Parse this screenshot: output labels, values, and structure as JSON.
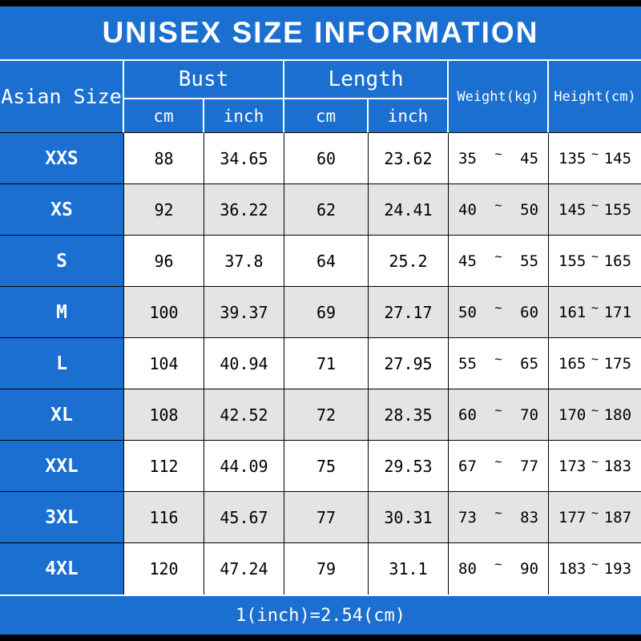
{
  "title": "UNISEX SIZE INFORMATION",
  "footer_note": "1(inch)=2.54(cm)",
  "colors": {
    "blue": "#1a6fd1",
    "gray_row": "#e4e4e4",
    "ink": "#000000",
    "paper": "#ffffff"
  },
  "table": {
    "size_col_header": "Asian Size",
    "tilde": "~",
    "groups": [
      {
        "label": "Bust",
        "sub": [
          "cm",
          "inch"
        ]
      },
      {
        "label": "Length",
        "sub": [
          "cm",
          "inch"
        ]
      },
      {
        "label": "Weight(kg)"
      },
      {
        "label": "Height(cm)"
      }
    ],
    "rows": [
      {
        "size": "XXS",
        "bust_cm": "88",
        "bust_inch": "34.65",
        "length_cm": "60",
        "length_inch": "23.62",
        "weight_min": "35",
        "weight_max": "45",
        "height_min": "135",
        "height_max": "145"
      },
      {
        "size": "XS",
        "bust_cm": "92",
        "bust_inch": "36.22",
        "length_cm": "62",
        "length_inch": "24.41",
        "weight_min": "40",
        "weight_max": "50",
        "height_min": "145",
        "height_max": "155"
      },
      {
        "size": "S",
        "bust_cm": "96",
        "bust_inch": "37.8",
        "length_cm": "64",
        "length_inch": "25.2",
        "weight_min": "45",
        "weight_max": "55",
        "height_min": "155",
        "height_max": "165"
      },
      {
        "size": "M",
        "bust_cm": "100",
        "bust_inch": "39.37",
        "length_cm": "69",
        "length_inch": "27.17",
        "weight_min": "50",
        "weight_max": "60",
        "height_min": "161",
        "height_max": "171"
      },
      {
        "size": "L",
        "bust_cm": "104",
        "bust_inch": "40.94",
        "length_cm": "71",
        "length_inch": "27.95",
        "weight_min": "55",
        "weight_max": "65",
        "height_min": "165",
        "height_max": "175"
      },
      {
        "size": "XL",
        "bust_cm": "108",
        "bust_inch": "42.52",
        "length_cm": "72",
        "length_inch": "28.35",
        "weight_min": "60",
        "weight_max": "70",
        "height_min": "170",
        "height_max": "180"
      },
      {
        "size": "XXL",
        "bust_cm": "112",
        "bust_inch": "44.09",
        "length_cm": "75",
        "length_inch": "29.53",
        "weight_min": "67",
        "weight_max": "77",
        "height_min": "173",
        "height_max": "183"
      },
      {
        "size": "3XL",
        "bust_cm": "116",
        "bust_inch": "45.67",
        "length_cm": "77",
        "length_inch": "30.31",
        "weight_min": "73",
        "weight_max": "83",
        "height_min": "177",
        "height_max": "187"
      },
      {
        "size": "4XL",
        "bust_cm": "120",
        "bust_inch": "47.24",
        "length_cm": "79",
        "length_inch": "31.1",
        "weight_min": "80",
        "weight_max": "90",
        "height_min": "183",
        "height_max": "193"
      }
    ]
  },
  "chart_data": {
    "type": "table",
    "title": "UNISEX SIZE INFORMATION",
    "columns": [
      "Asian Size",
      "Bust cm",
      "Bust inch",
      "Length cm",
      "Length inch",
      "Weight(kg)",
      "Height(cm)"
    ],
    "rows": [
      [
        "XXS",
        88,
        34.65,
        60,
        23.62,
        "35~45",
        "135~145"
      ],
      [
        "XS",
        92,
        36.22,
        62,
        24.41,
        "40~50",
        "145~155"
      ],
      [
        "S",
        96,
        37.8,
        64,
        25.2,
        "45~55",
        "155~165"
      ],
      [
        "M",
        100,
        39.37,
        69,
        27.17,
        "50~60",
        "161~171"
      ],
      [
        "L",
        104,
        40.94,
        71,
        27.95,
        "55~65",
        "165~175"
      ],
      [
        "XL",
        108,
        42.52,
        72,
        28.35,
        "60~70",
        "170~180"
      ],
      [
        "XXL",
        112,
        44.09,
        75,
        29.53,
        "67~77",
        "173~183"
      ],
      [
        "3XL",
        116,
        45.67,
        77,
        30.31,
        "73~83",
        "177~187"
      ],
      [
        "4XL",
        120,
        47.24,
        79,
        31.1,
        "80~90",
        "183~193"
      ]
    ],
    "note": "1(inch)=2.54(cm)"
  }
}
